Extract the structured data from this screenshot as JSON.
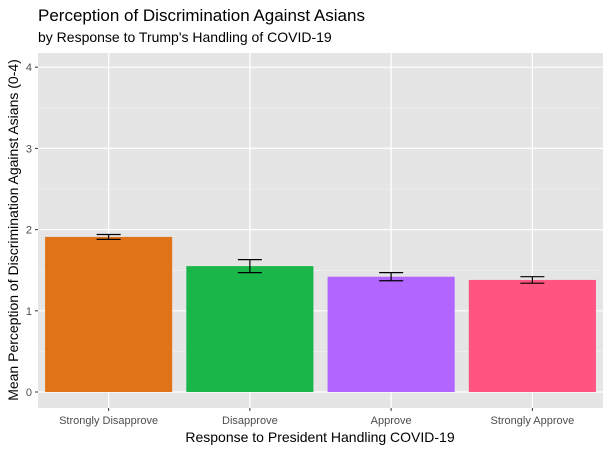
{
  "chart_data": {
    "type": "bar",
    "title": "Perception of Discrimination Against Asians",
    "subtitle": "by Response to Trump's Handling of COVID-19",
    "xlabel": "Response to President Handling COVID-19",
    "ylabel": "Mean Perception of Discrimination Against Asians (0-4)",
    "categories": [
      "Strongly Disapprove",
      "Disapprove",
      "Approve",
      "Strongly Approve"
    ],
    "values": [
      1.91,
      1.55,
      1.42,
      1.38
    ],
    "error_low": [
      1.88,
      1.47,
      1.37,
      1.34
    ],
    "error_high": [
      1.94,
      1.63,
      1.47,
      1.42
    ],
    "colors": [
      "#e07318",
      "#1ab64a",
      "#b266ff",
      "#ff5580"
    ],
    "ylim": [
      -0.1,
      4.2
    ],
    "yticks": [
      0,
      1,
      2,
      3,
      4
    ],
    "ytick_labels": [
      "0",
      "1",
      "2",
      "3",
      "4"
    ],
    "grid": true,
    "legend": "none"
  }
}
